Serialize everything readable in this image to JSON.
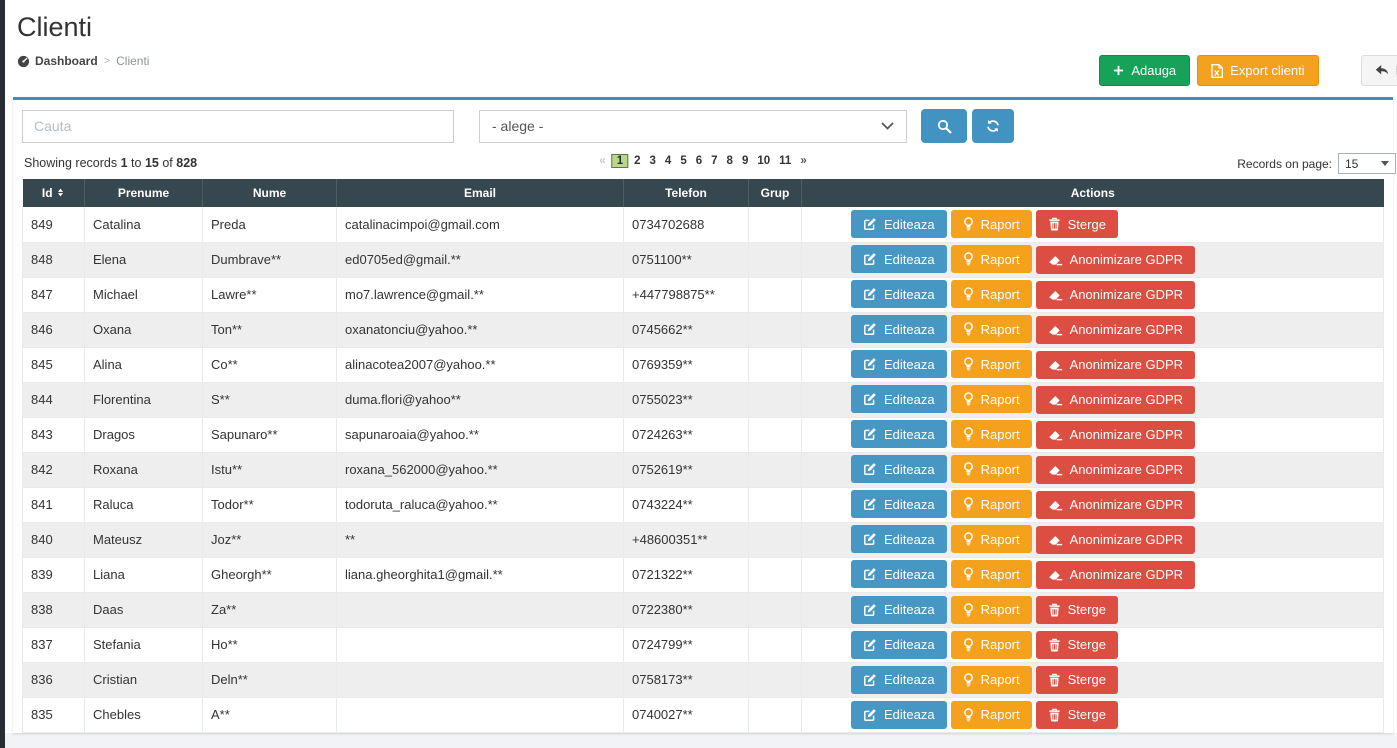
{
  "page": {
    "title": "Clienti",
    "breadcrumb": {
      "home": "Dashboard",
      "separator": ">",
      "current": "Clienti"
    }
  },
  "header_actions": {
    "add": "Adauga",
    "export": "Export clienti",
    "back": "Inapoi"
  },
  "filters": {
    "search_placeholder": "Cauta",
    "category_value": "- alege -"
  },
  "records_summary": {
    "prefix": "Showing records",
    "from": "1",
    "to_word": "to",
    "to": "15",
    "of_word": "of",
    "total": "828"
  },
  "records_per_page": {
    "label": "Records on page:",
    "value": "15"
  },
  "pagination": {
    "prev": "«",
    "pages": [
      "1",
      "2",
      "3",
      "4",
      "5",
      "6",
      "7",
      "8",
      "9",
      "10",
      "11"
    ],
    "active": "1",
    "next": "»"
  },
  "action_buttons": {
    "edit": "Editeaza",
    "report": "Raport",
    "delete": "Sterge",
    "gdpr": "Anonimizare GDPR"
  },
  "table": {
    "columns": [
      "Id",
      "Prenume",
      "Nume",
      "Email",
      "Telefon",
      "Grup",
      "Actions"
    ],
    "sorted_column": "Id",
    "rows": [
      {
        "id": "849",
        "prenume": "Catalina",
        "nume": "Preda",
        "email": "catalinacimpoi@gmail.com",
        "telefon": "0734702688",
        "grup": "",
        "actions": [
          "edit",
          "report",
          "delete"
        ]
      },
      {
        "id": "848",
        "prenume": "Elena",
        "nume": "Dumbrave**",
        "email": "ed0705ed@gmail.**",
        "telefon": "0751100**",
        "grup": "",
        "actions": [
          "edit",
          "report",
          "gdpr"
        ]
      },
      {
        "id": "847",
        "prenume": "Michael",
        "nume": "Lawre**",
        "email": "mo7.lawrence@gmail.**",
        "telefon": "+447798875**",
        "grup": "",
        "actions": [
          "edit",
          "report",
          "gdpr"
        ]
      },
      {
        "id": "846",
        "prenume": "Oxana",
        "nume": "Ton**",
        "email": "oxanatonciu@yahoo.**",
        "telefon": "0745662**",
        "grup": "",
        "actions": [
          "edit",
          "report",
          "gdpr"
        ]
      },
      {
        "id": "845",
        "prenume": "Alina",
        "nume": "Co**",
        "email": "alinacotea2007@yahoo.**",
        "telefon": "0769359**",
        "grup": "",
        "actions": [
          "edit",
          "report",
          "gdpr"
        ]
      },
      {
        "id": "844",
        "prenume": "Florentina",
        "nume": "S**",
        "email": "duma.flori@yahoo**",
        "telefon": "0755023**",
        "grup": "",
        "actions": [
          "edit",
          "report",
          "gdpr"
        ]
      },
      {
        "id": "843",
        "prenume": "Dragos",
        "nume": "Sapunaro**",
        "email": "sapunaroaia@yahoo.**",
        "telefon": "0724263**",
        "grup": "",
        "actions": [
          "edit",
          "report",
          "gdpr"
        ]
      },
      {
        "id": "842",
        "prenume": "Roxana",
        "nume": "Istu**",
        "email": "roxana_562000@yahoo.**",
        "telefon": "0752619**",
        "grup": "",
        "actions": [
          "edit",
          "report",
          "gdpr"
        ]
      },
      {
        "id": "841",
        "prenume": "Raluca",
        "nume": "Todor**",
        "email": "todoruta_raluca@yahoo.**",
        "telefon": "0743224**",
        "grup": "",
        "actions": [
          "edit",
          "report",
          "gdpr"
        ]
      },
      {
        "id": "840",
        "prenume": "Mateusz",
        "nume": "Joz**",
        "email": "**",
        "telefon": "+48600351**",
        "grup": "",
        "actions": [
          "edit",
          "report",
          "gdpr"
        ]
      },
      {
        "id": "839",
        "prenume": "Liana",
        "nume": "Gheorgh**",
        "email": "liana.gheorghita1@gmail.**",
        "telefon": "0721322**",
        "grup": "",
        "actions": [
          "edit",
          "report",
          "gdpr"
        ]
      },
      {
        "id": "838",
        "prenume": "Daas",
        "nume": "Za**",
        "email": "",
        "telefon": "0722380**",
        "grup": "",
        "actions": [
          "edit",
          "report",
          "delete"
        ]
      },
      {
        "id": "837",
        "prenume": "Stefania",
        "nume": "Ho**",
        "email": "",
        "telefon": "0724799**",
        "grup": "",
        "actions": [
          "edit",
          "report",
          "delete"
        ]
      },
      {
        "id": "836",
        "prenume": "Cristian",
        "nume": "Deln**",
        "email": "",
        "telefon": "0758173**",
        "grup": "",
        "actions": [
          "edit",
          "report",
          "delete"
        ]
      },
      {
        "id": "835",
        "prenume": "Chebles",
        "nume": "A**",
        "email": "",
        "telefon": "0740027**",
        "grup": "",
        "actions": [
          "edit",
          "report",
          "delete"
        ]
      }
    ]
  },
  "colors": {
    "box_accent_blue": "#3c8dbc",
    "button_blue": "#4697c4",
    "warning_orange": "#f4a11d",
    "danger_red": "#dc4e41",
    "success_green": "#17a25a",
    "table_header_dark": "#37474f",
    "active_page_green": "#b7d98b"
  }
}
